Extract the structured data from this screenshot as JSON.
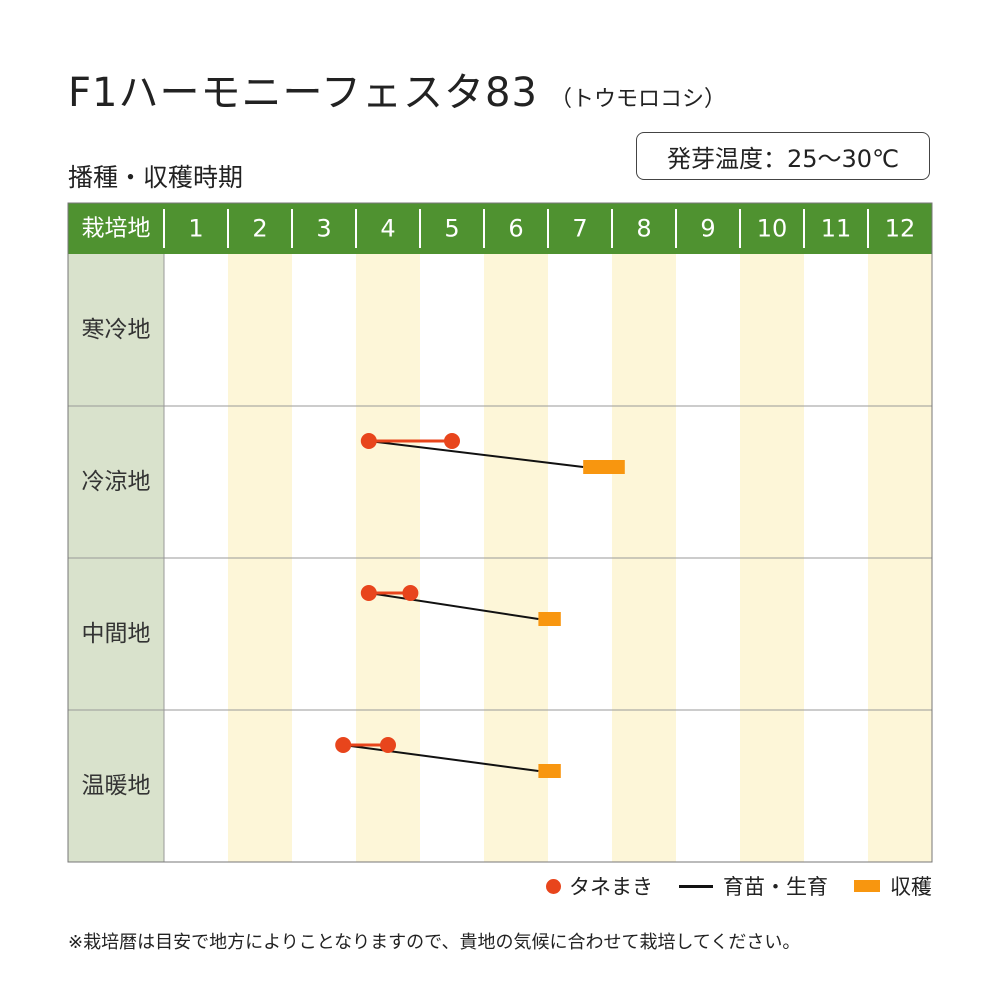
{
  "header": {
    "title": "F1ハーモニーフェスタ83",
    "subtitle": "（トウモロコシ）",
    "section_label": "播種・収穫時期",
    "germination_temp": "発芽温度：25～30℃"
  },
  "legend": {
    "sowing": "タネまき",
    "growing": "育苗・生育",
    "harvest": "収穫"
  },
  "footnote": "※栽培暦は目安で地方によりことなりますので、貴地の気候に合わせて栽培してください。",
  "colors": {
    "header_green": "#4f9230",
    "region_bg": "#d9e2cc",
    "stripe_bg": "#fdf6d8",
    "sowing": "#e8451c",
    "growing": "#111111",
    "harvest": "#f8960f",
    "grid": "#999999"
  },
  "chart_data": {
    "type": "gantt",
    "header_label": "栽培地",
    "months": [
      "1",
      "2",
      "3",
      "4",
      "5",
      "6",
      "7",
      "8",
      "9",
      "10",
      "11",
      "12"
    ],
    "regions": [
      {
        "name": "寒冷地",
        "sowing": null,
        "harvest": null
      },
      {
        "name": "冷涼地",
        "sowing": [
          4.2,
          5.5
        ],
        "harvest": [
          7.55,
          8.2
        ]
      },
      {
        "name": "中間地",
        "sowing": [
          4.2,
          4.85
        ],
        "harvest": [
          6.85,
          7.2
        ]
      },
      {
        "name": "温暖地",
        "sowing": [
          3.8,
          4.5
        ],
        "harvest": [
          6.85,
          7.2
        ]
      }
    ]
  }
}
